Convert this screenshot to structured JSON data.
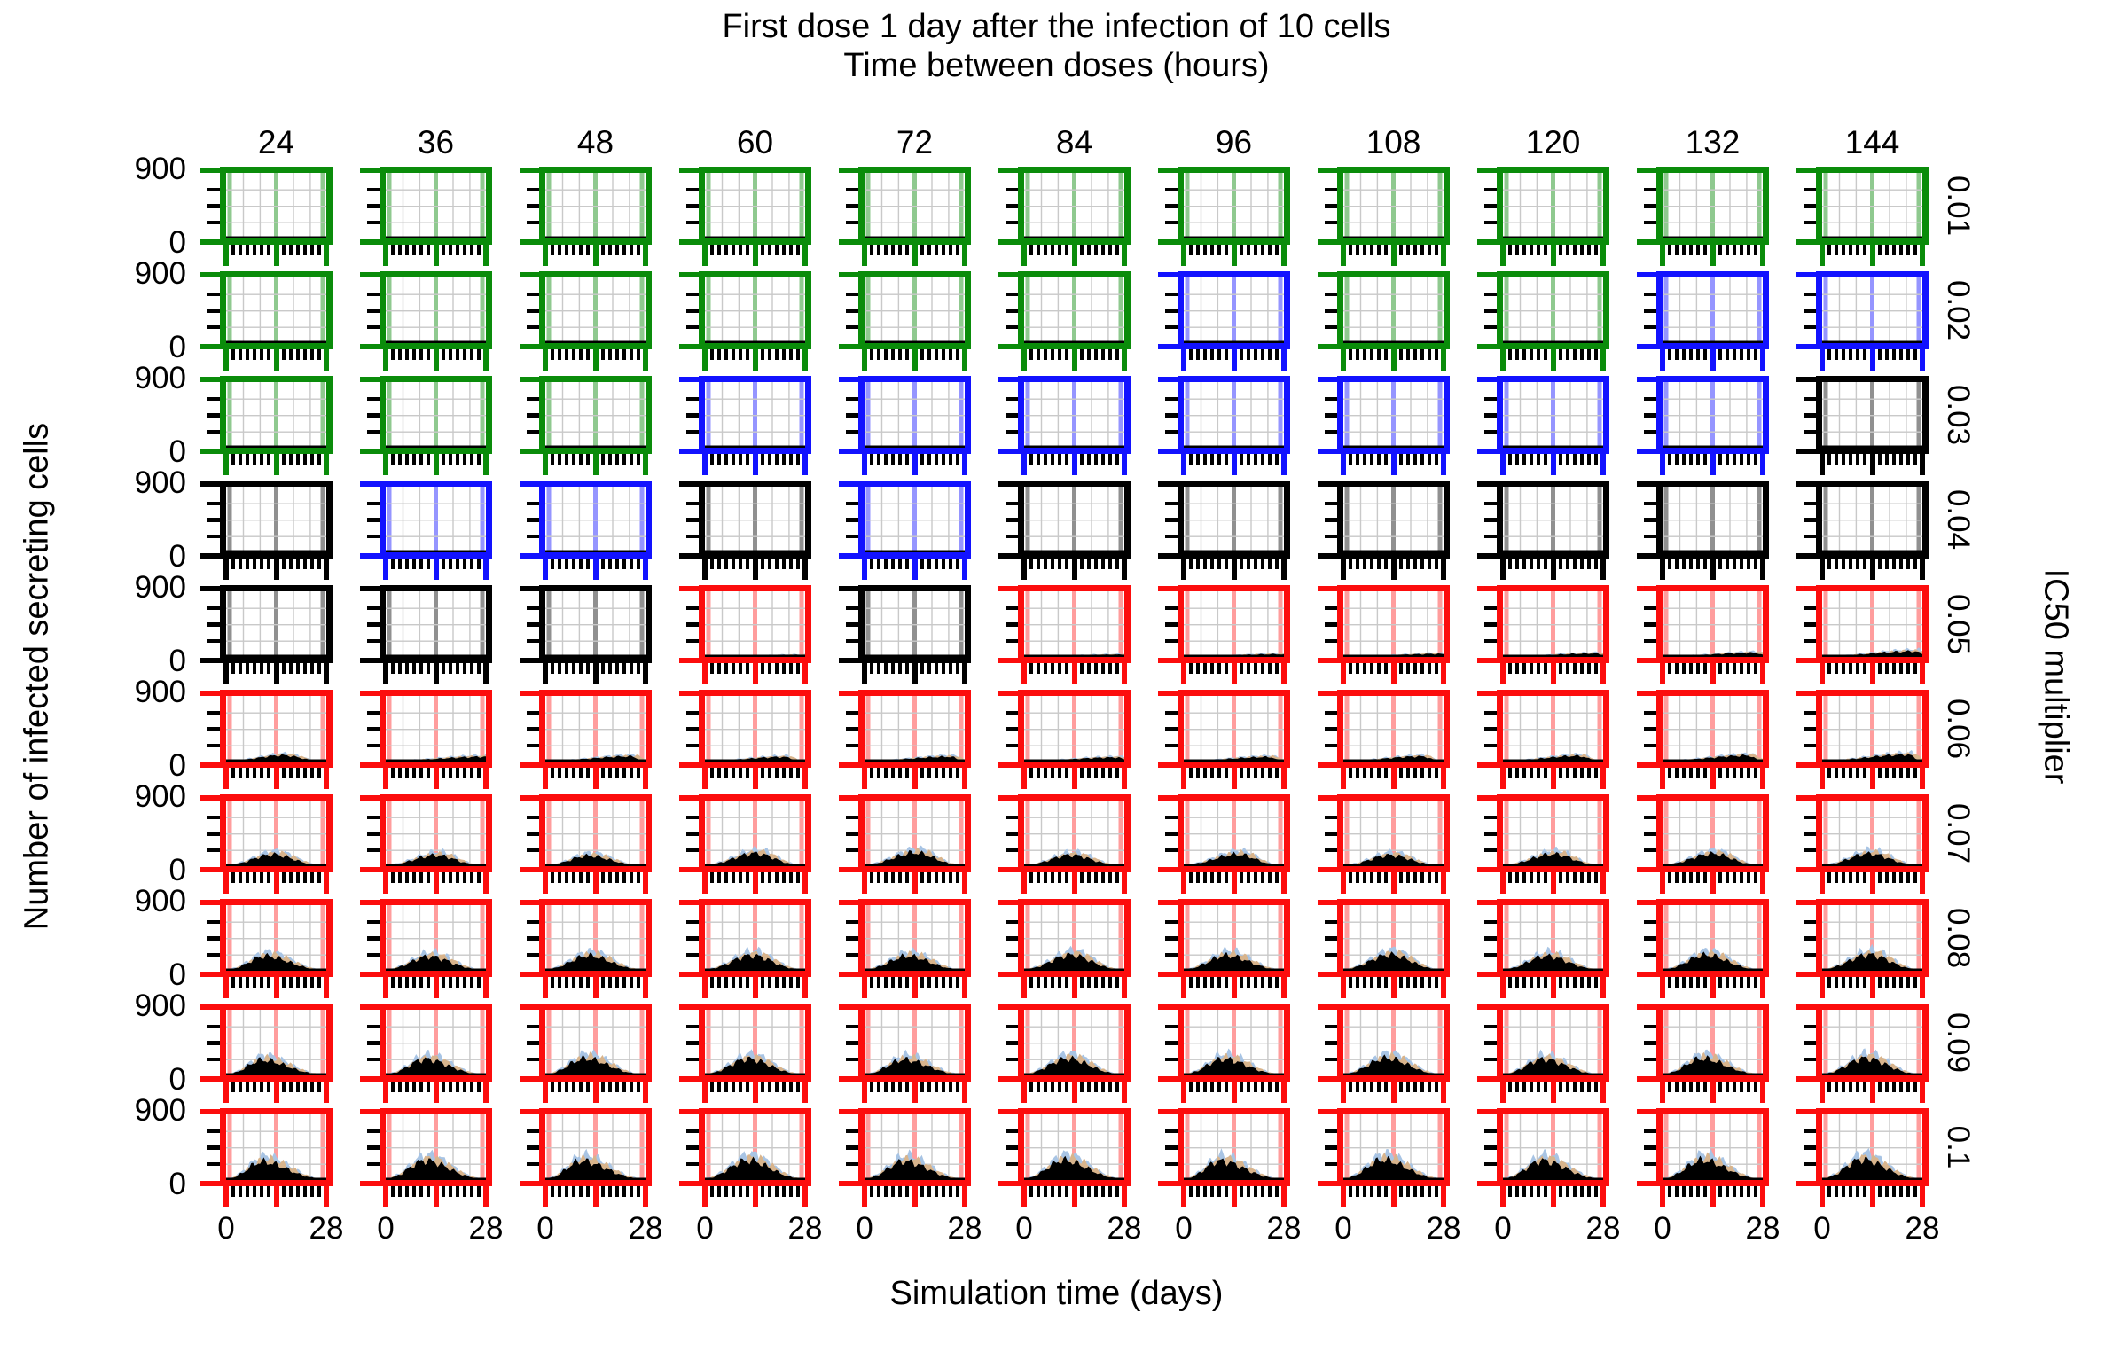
{
  "title": "First dose 1 day after the infection of 10 cells",
  "col_axis_title": "Time between doses (hours)",
  "x_axis_title": "Simulation time (days)",
  "y_axis_title": "Number of infected secreting cells",
  "row_axis_title": "IC50 multiplier",
  "columns": [
    "24",
    "36",
    "48",
    "60",
    "72",
    "84",
    "96",
    "108",
    "120",
    "132",
    "144"
  ],
  "rows": [
    "0.01",
    "0.02",
    "0.03",
    "0.04",
    "0.05",
    "0.06",
    "0.07",
    "0.08",
    "0.09",
    "0.1"
  ],
  "x_tick_labels": [
    "0",
    "28"
  ],
  "y_tick_labels": [
    "900",
    "0"
  ],
  "colors": {
    "green": "#0a8c0a",
    "blue": "#1212ff",
    "black": "#000000",
    "red": "#fc0d0d",
    "light_green": "#8fc98f",
    "light_blue": "#9595ff",
    "light_black": "#909090",
    "light_red": "#ff9d9d",
    "grid_gray": "#c9c9c9",
    "band_blue": "#a8c4e4",
    "band_tan": "#d8b48c",
    "curve_black": "#000000"
  },
  "chart_data": {
    "type": "area",
    "layout": "facet-grid small multiples, 11 columns x 10 rows",
    "x_range_days": [
      0,
      28
    ],
    "y_range_cells": [
      0,
      900
    ],
    "x_major_ticks_days": [
      0,
      14,
      28
    ],
    "x_minor_ticks_days": [
      2,
      4,
      6,
      8,
      10,
      12,
      16,
      18,
      20,
      22,
      24,
      26
    ],
    "y_major_ticks": [
      0,
      900
    ],
    "y_minor_ticks": [
      225,
      450,
      675
    ],
    "vline_marker_days": [
      1,
      14,
      27
    ],
    "grid": "gray minor gridlines; light panel-colored vertical marker lines",
    "legend_position": "none",
    "panel_border_colors_by_row": [
      [
        "green",
        "green",
        "green",
        "green",
        "green",
        "green",
        "green",
        "green",
        "green",
        "green",
        "green"
      ],
      [
        "green",
        "green",
        "green",
        "green",
        "green",
        "green",
        "blue",
        "green",
        "green",
        "blue",
        "blue"
      ],
      [
        "green",
        "green",
        "green",
        "blue",
        "blue",
        "blue",
        "blue",
        "blue",
        "blue",
        "blue",
        "black"
      ],
      [
        "black",
        "blue",
        "blue",
        "black",
        "blue",
        "black",
        "black",
        "black",
        "black",
        "black",
        "black"
      ],
      [
        "black",
        "black",
        "black",
        "red",
        "black",
        "red",
        "red",
        "red",
        "red",
        "red",
        "red"
      ],
      [
        "red",
        "red",
        "red",
        "red",
        "red",
        "red",
        "red",
        "red",
        "red",
        "red",
        "red"
      ],
      [
        "red",
        "red",
        "red",
        "red",
        "red",
        "red",
        "red",
        "red",
        "red",
        "red",
        "red"
      ],
      [
        "red",
        "red",
        "red",
        "red",
        "red",
        "red",
        "red",
        "red",
        "red",
        "red",
        "red"
      ],
      [
        "red",
        "red",
        "red",
        "red",
        "red",
        "red",
        "red",
        "red",
        "red",
        "red",
        "red"
      ],
      [
        "red",
        "red",
        "red",
        "red",
        "red",
        "red",
        "red",
        "red",
        "red",
        "red",
        "red"
      ]
    ],
    "curve_peak_cells_by_row": [
      [
        0,
        0,
        0,
        0,
        0,
        0,
        0,
        0,
        0,
        0,
        0
      ],
      [
        0,
        0,
        0,
        0,
        0,
        0,
        0,
        0,
        0,
        0,
        0
      ],
      [
        0,
        0,
        0,
        0,
        0,
        0,
        0,
        0,
        0,
        0,
        10
      ],
      [
        6,
        6,
        6,
        6,
        6,
        6,
        6,
        6,
        6,
        6,
        6
      ],
      [
        8,
        8,
        8,
        28,
        8,
        32,
        38,
        42,
        48,
        58,
        78
      ],
      [
        85,
        65,
        70,
        62,
        66,
        56,
        62,
        70,
        76,
        82,
        95
      ],
      [
        160,
        150,
        142,
        175,
        185,
        152,
        162,
        150,
        165,
        170,
        170
      ],
      [
        200,
        195,
        205,
        210,
        200,
        215,
        210,
        220,
        200,
        215,
        220
      ],
      [
        210,
        220,
        230,
        225,
        215,
        230,
        225,
        235,
        220,
        230,
        235
      ],
      [
        250,
        265,
        260,
        270,
        255,
        270,
        260,
        275,
        265,
        270,
        280
      ]
    ],
    "curve_peak_day_by_row": [
      [
        28,
        28,
        28,
        28,
        28,
        28,
        28,
        28,
        28,
        28,
        28
      ],
      [
        28,
        28,
        28,
        28,
        28,
        28,
        28,
        28,
        28,
        28,
        28
      ],
      [
        28,
        28,
        28,
        28,
        28,
        28,
        28,
        28,
        28,
        28,
        27
      ],
      [
        28,
        28,
        28,
        28,
        28,
        28,
        28,
        28,
        28,
        28,
        28
      ],
      [
        28,
        28,
        28,
        27,
        28,
        27,
        27,
        27,
        26,
        26,
        26
      ],
      [
        16,
        28,
        24,
        22,
        24,
        26,
        24,
        22,
        21,
        24,
        24
      ],
      [
        13,
        14,
        12,
        14,
        14,
        13,
        15,
        13,
        14,
        14,
        13
      ],
      [
        11,
        12,
        12,
        13,
        12,
        13,
        12,
        13,
        12,
        12,
        13
      ],
      [
        10,
        11,
        11,
        12,
        11,
        12,
        11,
        12,
        11,
        11,
        12
      ],
      [
        10,
        11,
        10,
        12,
        11,
        11,
        10,
        11,
        11,
        11,
        11
      ]
    ]
  }
}
